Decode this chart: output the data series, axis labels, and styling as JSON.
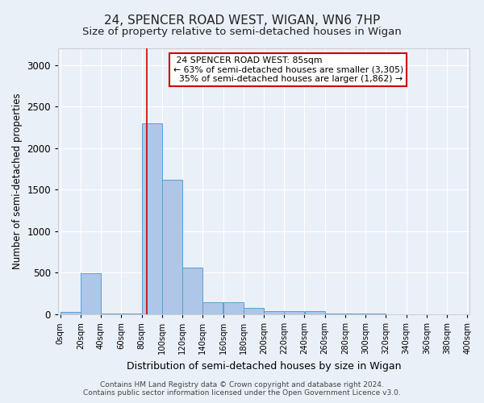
{
  "title1": "24, SPENCER ROAD WEST, WIGAN, WN6 7HP",
  "title2": "Size of property relative to semi-detached houses in Wigan",
  "xlabel": "Distribution of semi-detached houses by size in Wigan",
  "ylabel": "Number of semi-detached properties",
  "footnote1": "Contains HM Land Registry data © Crown copyright and database right 2024.",
  "footnote2": "Contains public sector information licensed under the Open Government Licence v3.0.",
  "bin_edges": [
    0,
    20,
    40,
    60,
    80,
    100,
    120,
    140,
    160,
    180,
    200,
    220,
    240,
    260,
    280,
    300,
    320,
    340,
    360,
    380,
    400
  ],
  "bar_heights": [
    30,
    490,
    5,
    5,
    2300,
    1620,
    560,
    150,
    150,
    80,
    40,
    35,
    35,
    5,
    5,
    5,
    2,
    2,
    2,
    2
  ],
  "bar_color": "#aec6e8",
  "bar_edge_color": "#5a9fd4",
  "property_size": 85,
  "property_label": "24 SPENCER ROAD WEST: 85sqm",
  "pct_smaller": 63,
  "pct_smaller_count": "3,305",
  "pct_larger": 35,
  "pct_larger_count": "1,862",
  "vline_color": "#cc0000",
  "bg_color": "#eaf0f8",
  "annotation_box_color": "#ffffff",
  "annotation_box_edge": "#cc0000",
  "ylim": [
    0,
    3200
  ],
  "xlim": [
    -2,
    402
  ],
  "grid_color": "#ffffff",
  "title1_fontsize": 11,
  "title2_fontsize": 9.5
}
